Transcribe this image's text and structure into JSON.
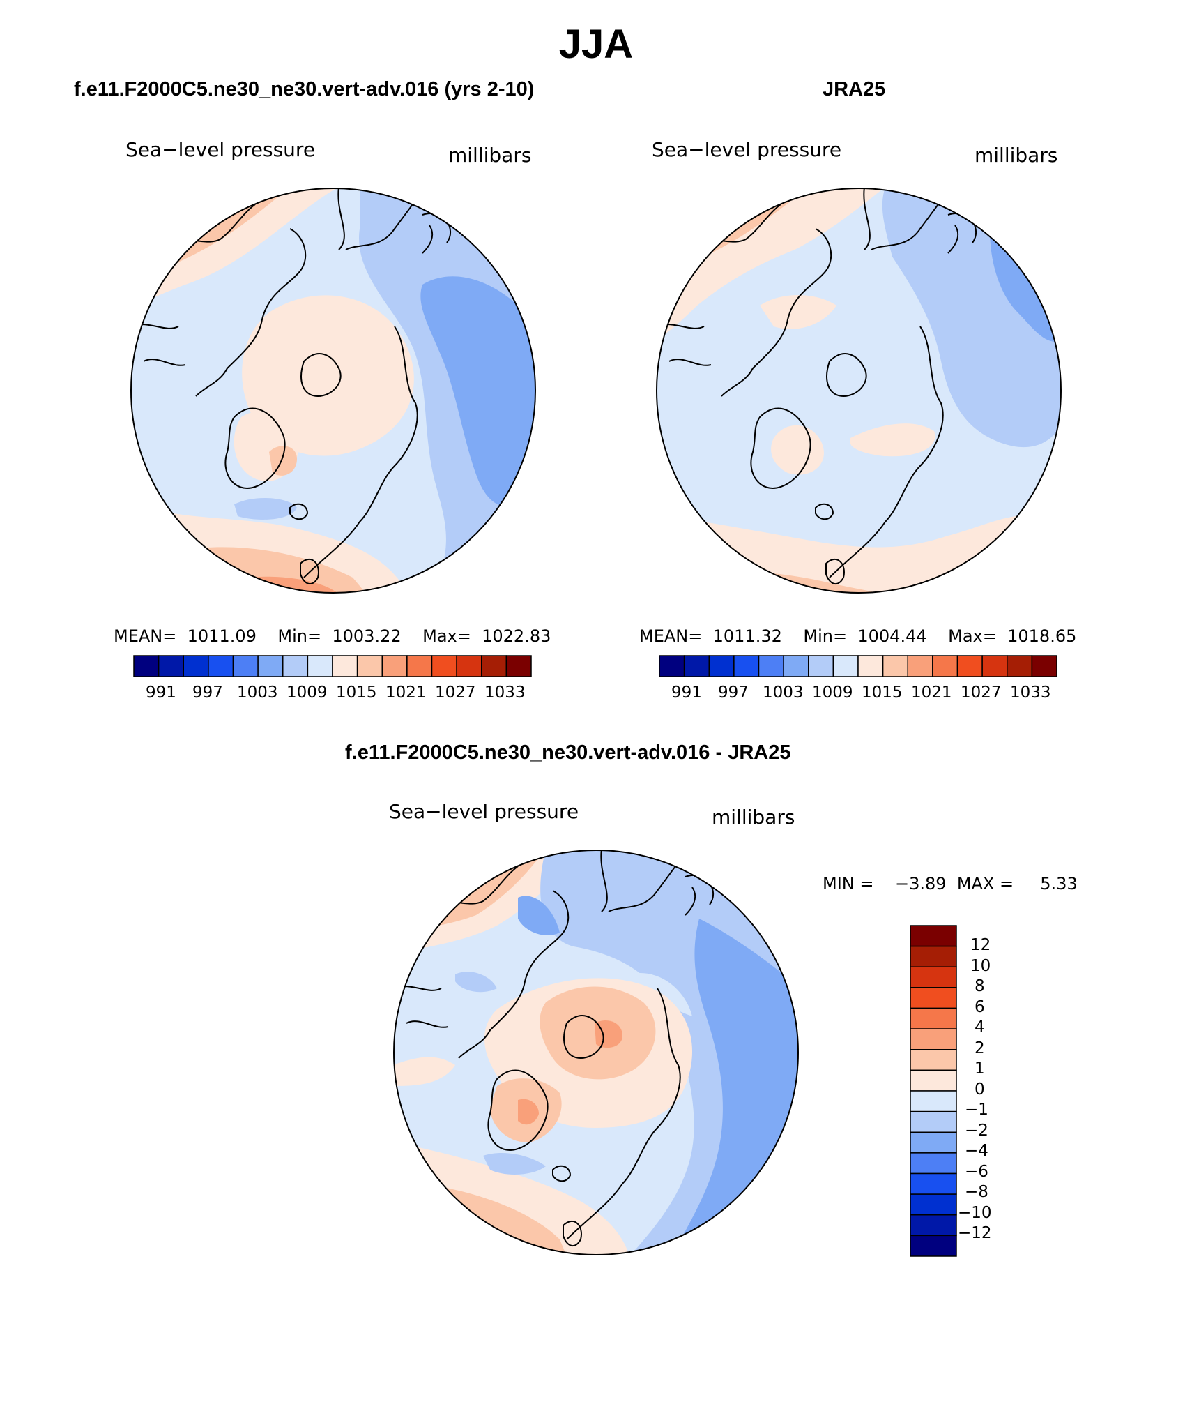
{
  "page_title": "JJA",
  "colors": {
    "field_palette": [
      "#00007f",
      "#0018a8",
      "#0030d0",
      "#1850f0",
      "#4d7ff5",
      "#7faaf5",
      "#b3ccf8",
      "#d9e8fb",
      "#fde8dc",
      "#fbc7aa",
      "#f9a07a",
      "#f5774a",
      "#f04e1f",
      "#d63410",
      "#a51e05",
      "#7a0000"
    ],
    "diff_palette": [
      "#00007f",
      "#0018a8",
      "#0030d0",
      "#1850f0",
      "#4d7ff5",
      "#7faaf5",
      "#b3ccf8",
      "#d9e8fb",
      "#fde8dc",
      "#fbc7aa",
      "#f9a07a",
      "#f5774a",
      "#f04e1f",
      "#d63410",
      "#a51e05",
      "#7a0000"
    ]
  },
  "panels": {
    "model": {
      "case_title": "f.e11.F2000C5.ne30_ne30.vert-adv.016 (yrs 2-10)",
      "variable": "Sea−level pressure",
      "units": "millibars",
      "mean_label": "MEAN=",
      "mean": "1011.09",
      "min_label": "Min=",
      "min": "1003.22",
      "max_label": "Max=",
      "max": "1022.83",
      "colorbar_ticks": [
        "991",
        "997",
        "1003",
        "1009",
        "1015",
        "1021",
        "1027",
        "1033"
      ]
    },
    "obs": {
      "case_title": "JRA25",
      "variable": "Sea−level pressure",
      "units": "millibars",
      "mean_label": "MEAN=",
      "mean": "1011.32",
      "min_label": "Min=",
      "min": "1004.44",
      "max_label": "Max=",
      "max": "1018.65",
      "colorbar_ticks": [
        "991",
        "997",
        "1003",
        "1009",
        "1015",
        "1021",
        "1027",
        "1033"
      ]
    },
    "diff": {
      "case_title": "f.e11.F2000C5.ne30_ne30.vert-adv.016 - JRA25",
      "variable": "Sea−level pressure",
      "units": "millibars",
      "min_label": "MIN =",
      "min": "−3.89",
      "max_label": "MAX =",
      "max": "5.33",
      "colorbar_ticks": [
        "12",
        "10",
        "8",
        "6",
        "4",
        "2",
        "1",
        "0",
        "−1",
        "−2",
        "−4",
        "−6",
        "−8",
        "−10",
        "−12"
      ]
    }
  }
}
